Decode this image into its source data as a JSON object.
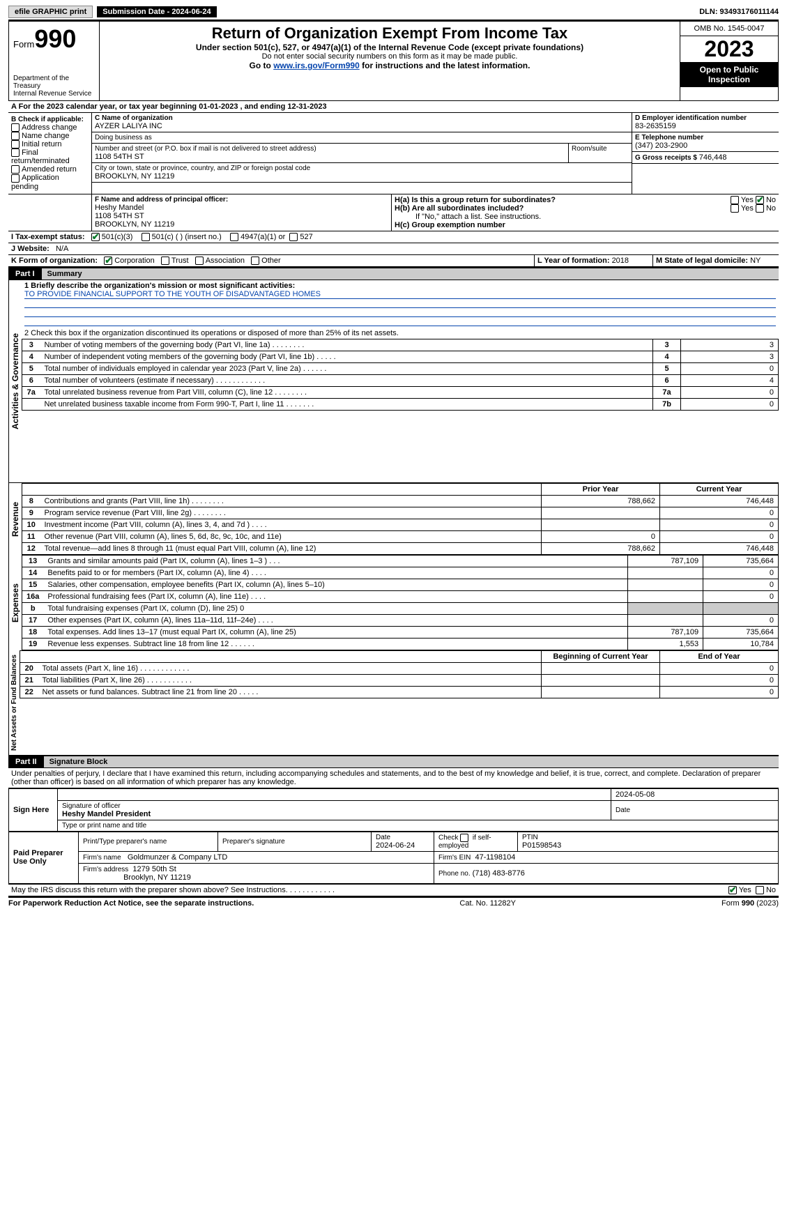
{
  "topbar": {
    "efile": "efile GRAPHIC print",
    "submission_label": "Submission Date - 2024-06-24",
    "dln_label": "DLN: 93493176011144"
  },
  "header": {
    "form_word": "Form",
    "form_num": "990",
    "dept1": "Department of the Treasury",
    "dept2": "Internal Revenue Service",
    "title": "Return of Organization Exempt From Income Tax",
    "subtitle": "Under section 501(c), 527, or 4947(a)(1) of the Internal Revenue Code (except private foundations)",
    "note_ssn": "Do not enter social security numbers on this form as it may be made public.",
    "goto_pre": "Go to ",
    "goto_link": "www.irs.gov/Form990",
    "goto_post": " for instructions and the latest information.",
    "omb": "OMB No. 1545-0047",
    "year": "2023",
    "open_insp": "Open to Public Inspection"
  },
  "period": {
    "a_label": "A For the 2023 calendar year, or tax year beginning ",
    "begin": "01-01-2023",
    "mid": " , and ending ",
    "end": "12-31-2023"
  },
  "boxB": {
    "label": "B Check if applicable:",
    "opts": [
      "Address change",
      "Name change",
      "Initial return",
      "Final return/terminated",
      "Amended return",
      "Application pending"
    ]
  },
  "boxC": {
    "name_label": "C Name of organization",
    "name": "AYZER LALIYA INC",
    "dba_label": "Doing business as",
    "dba": "",
    "street_label": "Number and street (or P.O. box if mail is not delivered to street address)",
    "room_label": "Room/suite",
    "street": "1108 54TH ST",
    "city_label": "City or town, state or province, country, and ZIP or foreign postal code",
    "city": "BROOKLYN, NY  11219"
  },
  "boxD": {
    "label": "D Employer identification number",
    "value": "83-2635159"
  },
  "boxE": {
    "label": "E Telephone number",
    "value": "(347) 203-2900"
  },
  "boxG": {
    "label": "G Gross receipts $ ",
    "value": "746,448"
  },
  "boxF": {
    "label": "F  Name and address of principal officer:",
    "line1": "Heshy Mandel",
    "line2": "1108 54TH ST",
    "line3": "BROOKLYN, NY  11219"
  },
  "boxH": {
    "a": "H(a)  Is this a group return for subordinates?",
    "b": "H(b)  Are all subordinates included?",
    "b_note": "If \"No,\" attach a list. See instructions.",
    "c": "H(c)  Group exemption number",
    "yes": "Yes",
    "no": "No"
  },
  "lineI": {
    "label": "I    Tax-exempt status:",
    "opt1": "501(c)(3)",
    "opt2": "501(c) (   ) (insert no.)",
    "opt3": "4947(a)(1) or",
    "opt4": "527"
  },
  "lineJ": {
    "label": "J    Website:",
    "value": "N/A"
  },
  "lineK": {
    "label": "K Form of organization:",
    "opts": [
      "Corporation",
      "Trust",
      "Association",
      "Other"
    ]
  },
  "lineL": {
    "label": "L Year of formation: ",
    "value": "2018"
  },
  "lineM": {
    "label": "M State of legal domicile: ",
    "value": "NY"
  },
  "partI": {
    "hdr": "Part I",
    "title": "Summary",
    "q1_label": "1   Briefly describe the organization's mission or most significant activities:",
    "q1_text": "TO PROVIDE FINANCIAL SUPPORT TO THE YOUTH OF DISADVANTAGED HOMES",
    "q2": "2   Check this box       if the organization discontinued its operations or disposed of more than 25% of its net assets.",
    "rows_gov": [
      {
        "n": "3",
        "d": "Number of voting members of the governing body (Part VI, line 1a)   .    .    .    .    .    .    .    .",
        "box": "3",
        "v": "3"
      },
      {
        "n": "4",
        "d": "Number of independent voting members of the governing body (Part VI, line 1b)   .    .    .    .    .",
        "box": "4",
        "v": "3"
      },
      {
        "n": "5",
        "d": "Total number of individuals employed in calendar year 2023 (Part V, line 2a)   .    .    .    .    .    .",
        "box": "5",
        "v": "0"
      },
      {
        "n": "6",
        "d": "Total number of volunteers (estimate if necessary)   .    .    .    .    .    .    .    .    .    .    .    .",
        "box": "6",
        "v": "4"
      },
      {
        "n": "7a",
        "d": "Total unrelated business revenue from Part VIII, column (C), line 12   .    .    .    .    .    .    .    .",
        "box": "7a",
        "v": "0"
      },
      {
        "n": "",
        "d": "Net unrelated business taxable income from Form 990-T, Part I, line 11   .    .    .    .    .    .    .",
        "box": "7b",
        "v": "0"
      }
    ],
    "col_prior": "Prior Year",
    "col_curr": "Current Year",
    "rows_rev": [
      {
        "n": "8",
        "d": "Contributions and grants (Part VIII, line 1h)   .    .    .    .    .    .    .    .",
        "p": "788,662",
        "c": "746,448"
      },
      {
        "n": "9",
        "d": "Program service revenue (Part VIII, line 2g)   .    .    .    .    .    .    .    .",
        "p": "",
        "c": "0"
      },
      {
        "n": "10",
        "d": "Investment income (Part VIII, column (A), lines 3, 4, and 7d )   .    .    .    .",
        "p": "",
        "c": "0"
      },
      {
        "n": "11",
        "d": "Other revenue (Part VIII, column (A), lines 5, 6d, 8c, 9c, 10c, and 11e)",
        "p": "0",
        "c": "0"
      },
      {
        "n": "12",
        "d": "Total revenue—add lines 8 through 11 (must equal Part VIII, column (A), line 12)",
        "p": "788,662",
        "c": "746,448"
      }
    ],
    "rows_exp": [
      {
        "n": "13",
        "d": "Grants and similar amounts paid (Part IX, column (A), lines 1–3 )   .    .    .",
        "p": "787,109",
        "c": "735,664"
      },
      {
        "n": "14",
        "d": "Benefits paid to or for members (Part IX, column (A), line 4)   .    .    .    .",
        "p": "",
        "c": "0"
      },
      {
        "n": "15",
        "d": "Salaries, other compensation, employee benefits (Part IX, column (A), lines 5–10)",
        "p": "",
        "c": "0"
      },
      {
        "n": "16a",
        "d": "Professional fundraising fees (Part IX, column (A), line 11e)   .    .    .    .",
        "p": "",
        "c": "0"
      },
      {
        "n": "b",
        "d": "Total fundraising expenses (Part IX, column (D), line 25) 0",
        "p": "GREY",
        "c": "GREY"
      },
      {
        "n": "17",
        "d": "Other expenses (Part IX, column (A), lines 11a–11d, 11f–24e)   .    .    .    .",
        "p": "",
        "c": "0"
      },
      {
        "n": "18",
        "d": "Total expenses. Add lines 13–17 (must equal Part IX, column (A), line 25)",
        "p": "787,109",
        "c": "735,664"
      },
      {
        "n": "19",
        "d": "Revenue less expenses. Subtract line 18 from line 12   .    .    .    .    .    .",
        "p": "1,553",
        "c": "10,784"
      }
    ],
    "col_boy": "Beginning of Current Year",
    "col_eoy": "End of Year",
    "rows_net": [
      {
        "n": "20",
        "d": "Total assets (Part X, line 16)   .    .    .    .    .    .    .    .    .    .    .    .",
        "p": "",
        "c": "0"
      },
      {
        "n": "21",
        "d": "Total liabilities (Part X, line 26)   .    .    .    .    .    .    .    .    .    .    .",
        "p": "",
        "c": "0"
      },
      {
        "n": "22",
        "d": "Net assets or fund balances. Subtract line 21 from line 20   .    .    .    .    .",
        "p": "",
        "c": "0"
      }
    ],
    "vert_gov": "Activities & Governance",
    "vert_rev": "Revenue",
    "vert_exp": "Expenses",
    "vert_net": "Net Assets or Fund Balances"
  },
  "partII": {
    "hdr": "Part II",
    "title": "Signature Block",
    "penalty": "Under penalties of perjury, I declare that I have examined this return, including accompanying schedules and statements, and to the best of my knowledge and belief, it is true, correct, and complete. Declaration of preparer (other than officer) is based on all information of which preparer has any knowledge.",
    "sign_here": "Sign Here",
    "sig_off": "Signature of officer",
    "sig_date_label": "Date",
    "sig_date": "2024-05-08",
    "officer_name": "Heshy Mandel  President",
    "type_label": "Type or print name and title",
    "paid_prep": "Paid Preparer Use Only",
    "prep_name_label": "Print/Type preparer's name",
    "prep_sig_label": "Preparer's signature",
    "date_label": "Date",
    "prep_date": "2024-06-24",
    "check_self": "Check        if self-employed",
    "ptin_label": "PTIN",
    "ptin": "P01598543",
    "firm_name_label": "Firm's name",
    "firm_name": "Goldmunzer & Company LTD",
    "firm_ein_label": "Firm's EIN",
    "firm_ein": "47-1198104",
    "firm_addr_label": "Firm's address",
    "firm_addr1": "1279 50th St",
    "firm_addr2": "Brooklyn, NY  11219",
    "phone_label": "Phone no.",
    "phone": "(718) 483-8776",
    "discuss": "May the IRS discuss this return with the preparer shown above? See Instructions.   .    .    .    .    .    .    .    .    .    .    .",
    "yes": "Yes",
    "no": "No"
  },
  "footer": {
    "left": "For Paperwork Reduction Act Notice, see the separate instructions.",
    "mid": "Cat. No. 11282Y",
    "right_pre": "Form ",
    "right_bold": "990",
    "right_post": " (2023)"
  }
}
